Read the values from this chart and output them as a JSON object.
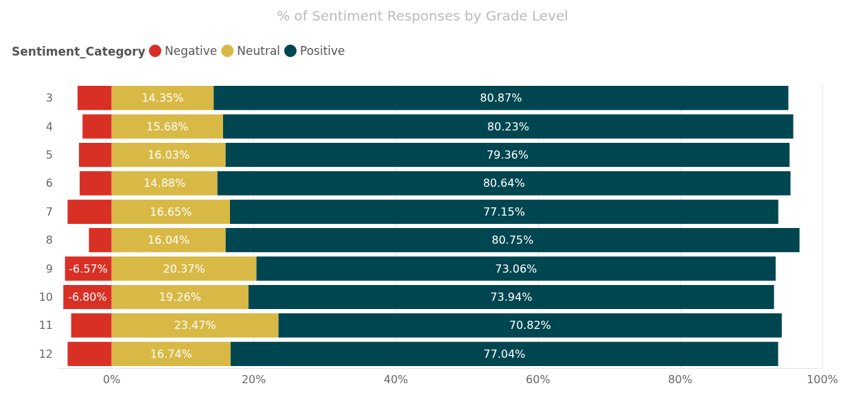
{
  "chart_data": {
    "type": "bar",
    "orientation": "horizontal",
    "stacked": true,
    "title": "% of Sentiment Responses by Grade Level",
    "legend_title": "Sentiment_Category",
    "legend": "top left",
    "grid": "x",
    "categories": [
      "3",
      "4",
      "5",
      "6",
      "7",
      "8",
      "9",
      "10",
      "11",
      "12"
    ],
    "xlim": [
      -7.5,
      100
    ],
    "xticks": [
      {
        "value": 0,
        "label": "0%"
      },
      {
        "value": 20,
        "label": "20%"
      },
      {
        "value": 40,
        "label": "40%"
      },
      {
        "value": 60,
        "label": "60%"
      },
      {
        "value": 80,
        "label": "80%"
      },
      {
        "value": 100,
        "label": "100%"
      }
    ],
    "series": [
      {
        "name": "Negative",
        "color": "#d93025",
        "values": [
          -4.8,
          -4.1,
          -4.6,
          -4.5,
          -6.2,
          -3.2,
          -6.57,
          -6.8,
          -5.7,
          -6.2
        ],
        "value_labels": [
          null,
          null,
          null,
          null,
          null,
          null,
          "-6.57%",
          "-6.80%",
          null,
          null
        ]
      },
      {
        "name": "Neutral",
        "color": "#d9b945",
        "values": [
          14.35,
          15.68,
          16.03,
          14.88,
          16.65,
          16.04,
          20.37,
          19.26,
          23.47,
          16.74
        ],
        "value_labels": [
          "14.35%",
          "15.68%",
          "16.03%",
          "14.88%",
          "16.65%",
          "16.04%",
          "20.37%",
          "19.26%",
          "23.47%",
          "16.74%"
        ]
      },
      {
        "name": "Positive",
        "color": "#004650",
        "values": [
          80.87,
          80.23,
          79.36,
          80.64,
          77.15,
          80.75,
          73.06,
          73.94,
          70.82,
          77.04
        ],
        "value_labels": [
          "80.87%",
          "80.23%",
          "79.36%",
          "80.64%",
          "77.15%",
          "80.75%",
          "73.06%",
          "73.94%",
          "70.82%",
          "77.04%"
        ]
      }
    ]
  }
}
